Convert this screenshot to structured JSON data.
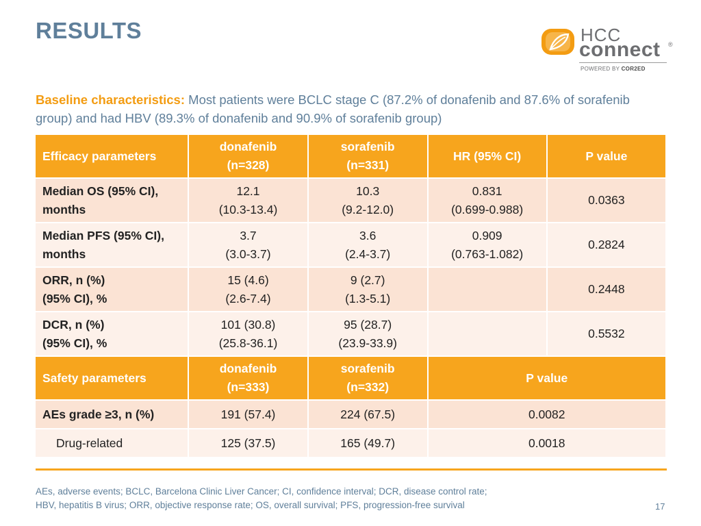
{
  "slide": {
    "title": "RESULTS",
    "page_number": "17"
  },
  "logo": {
    "line1": "HCC",
    "line2": "connect",
    "registered": "®",
    "powered_prefix": "POWERED BY ",
    "powered_brand": "COR2ED",
    "colors": {
      "orange": "#f39c12",
      "gray": "#6d6e71"
    }
  },
  "intro": {
    "lead": "Baseline characteristics:",
    "text": " Most patients were BCLC stage C (87.2% of donafenib and 87.6% of sorafenib group) and had HBV (89.3% of donafenib and 90.9% of sorafenib group)"
  },
  "efficacy": {
    "header": {
      "param": "Efficacy parameters",
      "col1_line1": "donafenib",
      "col1_line2": "(n=328)",
      "col2_line1": "sorafenib",
      "col2_line2": "(n=331)",
      "hr": "HR (95% CI)",
      "p": "P value"
    },
    "rows": [
      {
        "l1": "Median OS (95% CI),",
        "l2": "months",
        "a1": "12.1",
        "a2": "(10.3-13.4)",
        "b1": "10.3",
        "b2": "(9.2-12.0)",
        "h1": "0.831",
        "h2": "(0.699-0.988)",
        "p": "0.0363"
      },
      {
        "l1": "Median PFS (95% CI),",
        "l2": "months",
        "a1": "3.7",
        "a2": "(3.0-3.7)",
        "b1": "3.6",
        "b2": "(2.4-3.7)",
        "h1": "0.909",
        "h2": "(0.763-1.082)",
        "p": "0.2824"
      },
      {
        "l1": "ORR, n (%)",
        "l2": "(95% CI), %",
        "a1": "15 (4.6)",
        "a2": "(2.6-7.4)",
        "b1": "9 (2.7)",
        "b2": "(1.3-5.1)",
        "h1": "",
        "h2": "",
        "p": "0.2448"
      },
      {
        "l1": "DCR, n (%)",
        "l2": "(95% CI), %",
        "a1": "101 (30.8)",
        "a2": "(25.8-36.1)",
        "b1": "95 (28.7)",
        "b2": "(23.9-33.9)",
        "h1": "",
        "h2": "",
        "p": "0.5532"
      }
    ]
  },
  "safety": {
    "header": {
      "param": "Safety parameters",
      "col1_line1": "donafenib",
      "col1_line2": "(n=333)",
      "col2_line1": "sorafenib",
      "col2_line2": "(n=332)",
      "p": "P value"
    },
    "rows": [
      {
        "label": "AEs grade ≥3, n (%)",
        "a": "191 (57.4)",
        "b": "224 (67.5)",
        "p": "0.0082"
      },
      {
        "label": "Drug-related",
        "a": "125 (37.5)",
        "b": "165 (49.7)",
        "p": "0.0018"
      }
    ]
  },
  "footnote": {
    "line1": "AEs, adverse events; BCLC, Barcelona Clinic Liver Cancer; CI, confidence interval; DCR, disease control rate;",
    "line2": "HBV, hepatitis B virus; ORR, objective response rate; OS, overall survival; PFS, progression-free survival"
  },
  "colors": {
    "header_orange": "#f7a51d",
    "row_dark": "#fbe3d4",
    "row_light": "#fdf1ea",
    "title_blue": "#5f7f9a"
  }
}
